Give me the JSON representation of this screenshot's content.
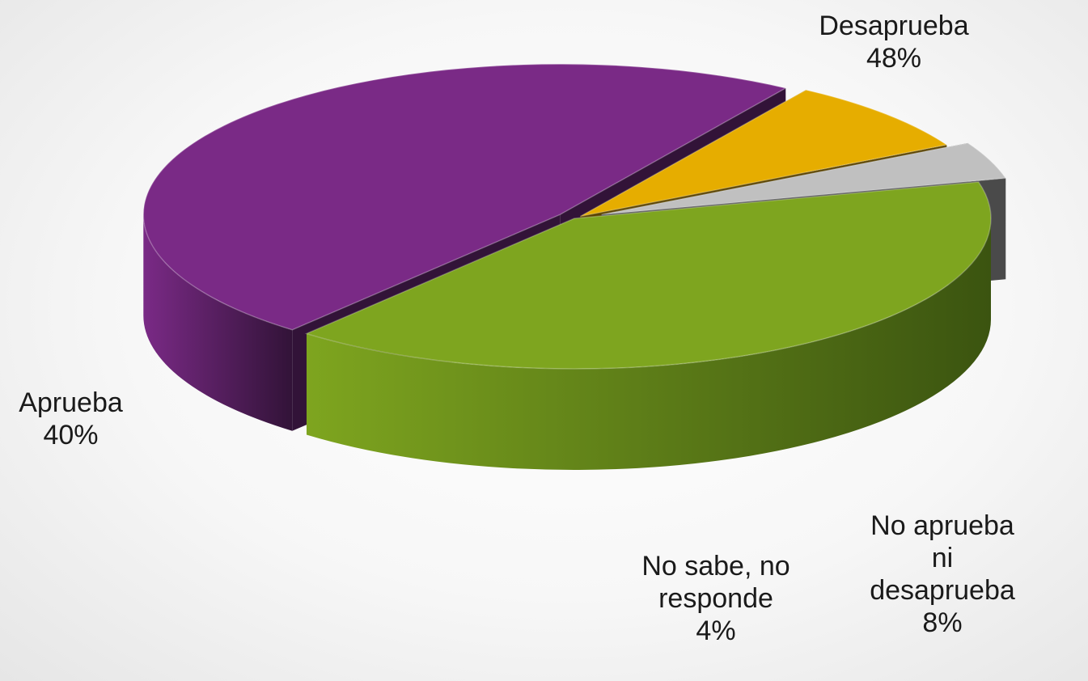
{
  "chart_data": {
    "type": "pie",
    "title": "",
    "start_angle_deg": 130,
    "slices": [
      {
        "name": "Desaprueba",
        "value": 48,
        "label": "48%",
        "color": "#7a2a86",
        "side_dark": "#321338"
      },
      {
        "name": "No aprueba ni desaprueba",
        "value": 8,
        "label": "8%",
        "color": "#e6ad00",
        "side_dark": "#5a4300"
      },
      {
        "name": "No sabe, no responde",
        "value": 4,
        "label": "4%",
        "color": "#c0c0c0",
        "side_dark": "#4a4a4a"
      },
      {
        "name": "Aprueba",
        "value": 40,
        "label": "40%",
        "color": "#7ea51f",
        "side_dark": "#3b5410"
      }
    ]
  }
}
